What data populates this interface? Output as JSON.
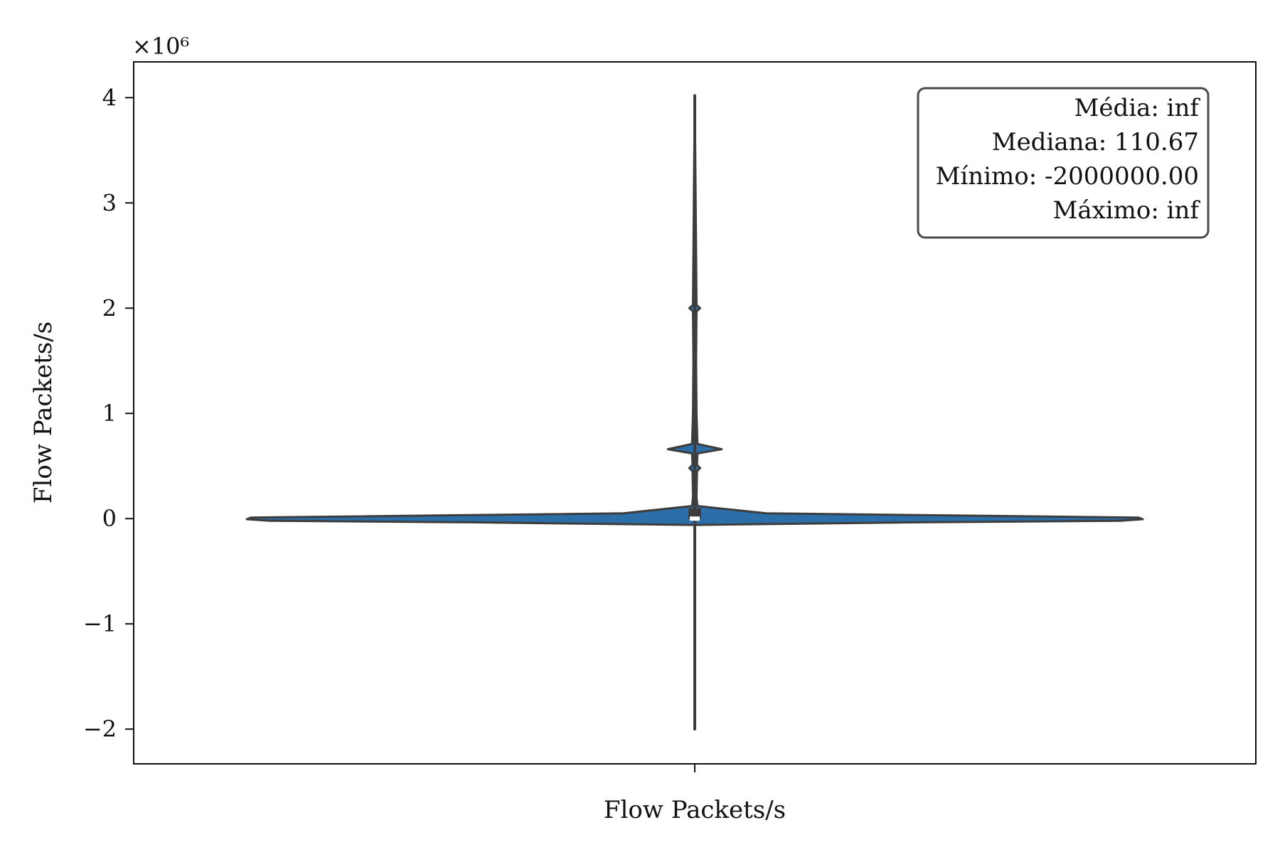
{
  "chart_data": {
    "type": "violin",
    "title": "",
    "xlabel": "Flow Packets/s",
    "ylabel": "Flow Packets/s",
    "categories": [
      ""
    ],
    "y_scale_label": "×10⁶",
    "yticks": [
      -2,
      -1,
      0,
      1,
      2,
      3,
      4
    ],
    "ytick_labels": [
      "−2",
      "−1",
      "0",
      "1",
      "2",
      "3",
      "4"
    ],
    "ylim": [
      -2.33,
      4.34
    ],
    "grid": false,
    "colors": {
      "fill": "#2b6ea8",
      "edge": "#3d3d3d",
      "median": "#ffffff"
    },
    "series": [
      {
        "min": -2.0,
        "max": 4.02,
        "median": 0.0001107,
        "q1": -0.0002,
        "q3": 0.1,
        "density_profile": [
          [
            -0.06,
            0.0
          ],
          [
            -0.035,
            0.5
          ],
          [
            -0.02,
            0.95
          ],
          [
            -0.005,
            1.0
          ],
          [
            0.01,
            0.99
          ],
          [
            0.05,
            0.16
          ],
          [
            0.12,
            0.006
          ],
          [
            0.2,
            0.004
          ],
          [
            0.45,
            0.005
          ],
          [
            0.48,
            0.012
          ],
          [
            0.51,
            0.005
          ],
          [
            0.62,
            0.006
          ],
          [
            0.66,
            0.06
          ],
          [
            0.71,
            0.006
          ],
          [
            1.0,
            0.004
          ],
          [
            1.5,
            0.003
          ],
          [
            1.97,
            0.004
          ],
          [
            2.0,
            0.012
          ],
          [
            2.03,
            0.004
          ],
          [
            3.0,
            0.002
          ],
          [
            4.02,
            0.0
          ]
        ]
      }
    ]
  },
  "stats_box": {
    "lines": [
      "Média: inf",
      "Mediana: 110.67",
      "Mínimo: -2000000.00",
      "Máximo: inf"
    ]
  }
}
